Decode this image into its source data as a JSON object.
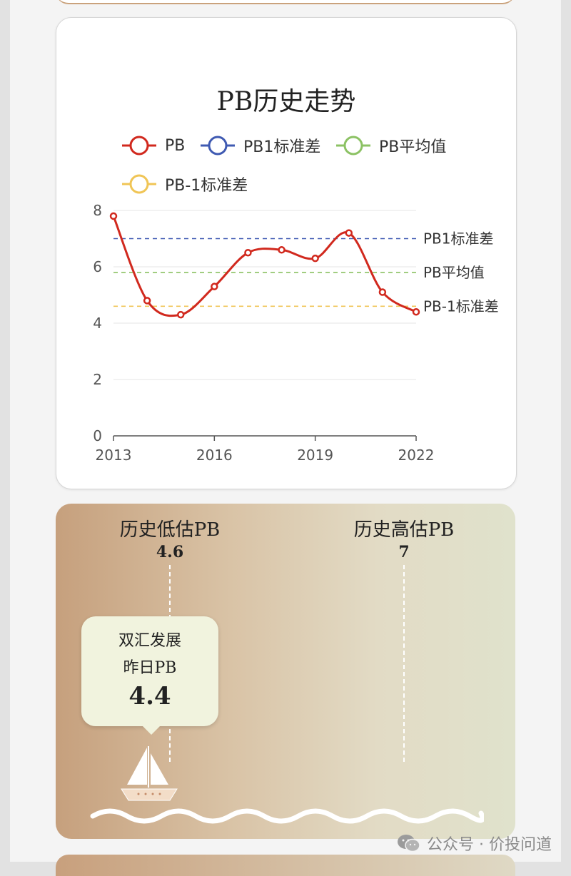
{
  "chart_data": {
    "type": "line",
    "title": "PB历史走势",
    "x": [
      2013,
      2014,
      2015,
      2016,
      2017,
      2018,
      2019,
      2020,
      2021,
      2022
    ],
    "x_ticks": [
      "2013",
      "2016",
      "2019",
      "2022"
    ],
    "y_ticks": [
      "0",
      "2",
      "4",
      "6",
      "8"
    ],
    "ylim": [
      0,
      8
    ],
    "grid": true,
    "legend_position": "top",
    "series": [
      {
        "name": "PB",
        "values": [
          7.8,
          4.8,
          4.3,
          5.3,
          6.5,
          6.6,
          6.3,
          7.2,
          5.1,
          4.4
        ],
        "color": "#d1291e",
        "style": "smooth-line-with-markers"
      },
      {
        "name": "PB1标准差",
        "value": 7.0,
        "color": "#3f5ab2",
        "style": "dashed"
      },
      {
        "name": "PB平均值",
        "value": 5.8,
        "color": "#8cc264",
        "style": "dashed"
      },
      {
        "name": "PB-1标准差",
        "value": 4.6,
        "color": "#f0c556",
        "style": "dashed"
      }
    ],
    "ref_labels": [
      "PB1标准差",
      "PB平均值",
      "PB-1标准差"
    ]
  },
  "gauge": {
    "low_label": "历史低估PB",
    "low_value": "4.6",
    "high_label": "历史高估PB",
    "high_value": "7",
    "bubble_line1": "双汇发展",
    "bubble_line2": "昨日PB",
    "bubble_value": "4.4"
  },
  "watermark": {
    "text": "公众号 · 价投问道",
    "icon": "wechat-icon"
  }
}
